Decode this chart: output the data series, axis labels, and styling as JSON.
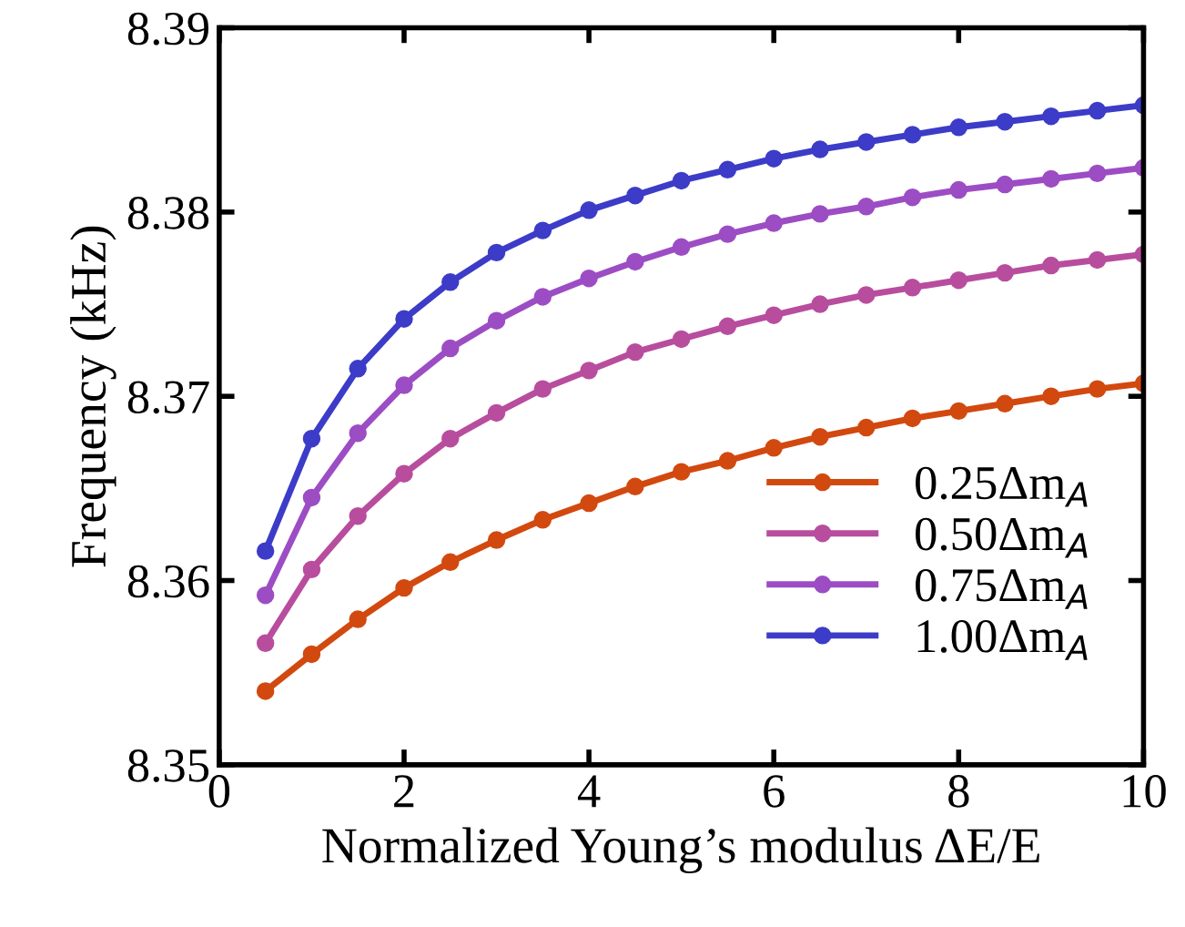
{
  "chart_data": {
    "type": "line",
    "xlabel": "Normalized Young’s modulus ΔE/E",
    "ylabel": "Frequency (kHz)",
    "x": [
      0.5,
      1,
      1.5,
      2,
      2.5,
      3,
      3.5,
      4,
      4.5,
      5,
      5.5,
      6,
      6.5,
      7,
      7.5,
      8,
      8.5,
      9,
      9.5,
      10
    ],
    "series": [
      {
        "name": "0.25Δm$_{A}$",
        "color": "#d2490f",
        "values": [
          8.354,
          8.356,
          8.3579,
          8.3596,
          8.361,
          8.3622,
          8.3633,
          8.3642,
          8.3651,
          8.3659,
          8.3665,
          8.3672,
          8.3678,
          8.3683,
          8.3688,
          8.3692,
          8.3696,
          8.37,
          8.3704,
          8.3707
        ]
      },
      {
        "name": "0.50Δm$_{A}$",
        "color": "#b84d9e",
        "values": [
          8.3566,
          8.3606,
          8.3635,
          8.3658,
          8.3677,
          8.3691,
          8.3704,
          8.3714,
          8.3724,
          8.3731,
          8.3738,
          8.3744,
          8.375,
          8.3755,
          8.3759,
          8.3763,
          8.3767,
          8.3771,
          8.3774,
          8.3777
        ]
      },
      {
        "name": "0.75Δm$_{A}$",
        "color": "#9c4dc4",
        "values": [
          8.3592,
          8.3645,
          8.368,
          8.3706,
          8.3726,
          8.3741,
          8.3754,
          8.3764,
          8.3773,
          8.3781,
          8.3788,
          8.3794,
          8.3799,
          8.3803,
          8.3808,
          8.3812,
          8.3815,
          8.3818,
          8.3821,
          8.3824
        ]
      },
      {
        "name": "1.00Δm$_{A}$",
        "color": "#3c3cc8",
        "values": [
          8.3616,
          8.3677,
          8.3715,
          8.3742,
          8.3762,
          8.3778,
          8.379,
          8.3801,
          8.3809,
          8.3817,
          8.3823,
          8.3829,
          8.3834,
          8.3838,
          8.3842,
          8.3846,
          8.3849,
          8.3852,
          8.3855,
          8.3858
        ]
      }
    ],
    "xlim": [
      0,
      10
    ],
    "xticks": [
      0,
      2,
      4,
      6,
      8,
      10
    ],
    "ylim": [
      8.35,
      8.39
    ],
    "yticks": [
      {
        "value": 8.35,
        "label": "8.35"
      },
      {
        "value": 8.36,
        "label": "8.36"
      },
      {
        "value": 8.37,
        "label": "8.37"
      },
      {
        "value": 8.38,
        "label": "8.38"
      },
      {
        "value": 8.39,
        "label": "8.39"
      }
    ],
    "grid": false,
    "legend": "bottom right",
    "marker": "circle",
    "line_style": "solid"
  }
}
